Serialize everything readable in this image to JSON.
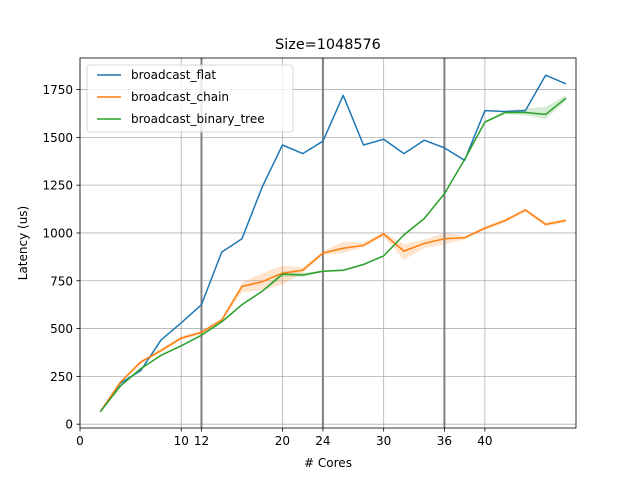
{
  "chart_data": {
    "type": "line",
    "title": "Size=1048576",
    "xlabel": "# Cores",
    "ylabel": "Latency (us)",
    "xlim": [
      0,
      49
    ],
    "ylim": [
      -20,
      1915
    ],
    "x_ticks": [
      0,
      10,
      12,
      20,
      24,
      30,
      36,
      40
    ],
    "y_ticks": [
      0,
      250,
      500,
      750,
      1000,
      1250,
      1500,
      1750
    ],
    "grid": true,
    "vertical_markers": [
      12,
      24,
      36
    ],
    "legend_position": "top-left",
    "x": [
      2,
      4,
      6,
      8,
      10,
      12,
      14,
      16,
      18,
      20,
      22,
      24,
      26,
      28,
      30,
      32,
      34,
      36,
      38,
      40,
      42,
      44,
      46,
      48
    ],
    "series": [
      {
        "name": "broadcast_flat",
        "color": "#1f77b4",
        "values": [
          65,
          215,
          280,
          440,
          530,
          625,
          900,
          970,
          1240,
          1460,
          1415,
          1480,
          1720,
          1460,
          1490,
          1415,
          1485,
          1445,
          1380,
          1640,
          1635,
          1640,
          1825,
          1780
        ]
      },
      {
        "name": "broadcast_chain",
        "color": "#ff7f0e",
        "values": [
          65,
          220,
          325,
          385,
          450,
          480,
          545,
          720,
          745,
          790,
          805,
          895,
          920,
          935,
          995,
          905,
          945,
          970,
          975,
          1025,
          1065,
          1120,
          1045,
          1065
        ],
        "band_low": [
          65,
          215,
          315,
          375,
          440,
          470,
          535,
          690,
          700,
          730,
          790,
          885,
          895,
          925,
          980,
          860,
          920,
          940,
          965,
          1015,
          1055,
          1110,
          1035,
          1055
        ],
        "band_high": [
          65,
          225,
          335,
          395,
          460,
          490,
          555,
          740,
          790,
          830,
          820,
          905,
          955,
          950,
          1005,
          940,
          965,
          1000,
          985,
          1035,
          1075,
          1130,
          1055,
          1075
        ]
      },
      {
        "name": "broadcast_binary_tree",
        "color": "#2ca02c",
        "values": [
          65,
          200,
          290,
          360,
          410,
          465,
          535,
          625,
          695,
          785,
          780,
          800,
          805,
          835,
          880,
          990,
          1075,
          1205,
          1385,
          1580,
          1630,
          1630,
          1620,
          1705
        ],
        "band_low": [
          65,
          195,
          285,
          355,
          405,
          460,
          530,
          620,
          690,
          770,
          770,
          795,
          800,
          830,
          875,
          985,
          1070,
          1200,
          1380,
          1575,
          1620,
          1615,
          1595,
          1690
        ],
        "band_high": [
          65,
          205,
          295,
          365,
          415,
          470,
          540,
          630,
          700,
          800,
          790,
          805,
          810,
          840,
          885,
          995,
          1080,
          1210,
          1390,
          1585,
          1640,
          1650,
          1660,
          1720
        ]
      }
    ]
  }
}
